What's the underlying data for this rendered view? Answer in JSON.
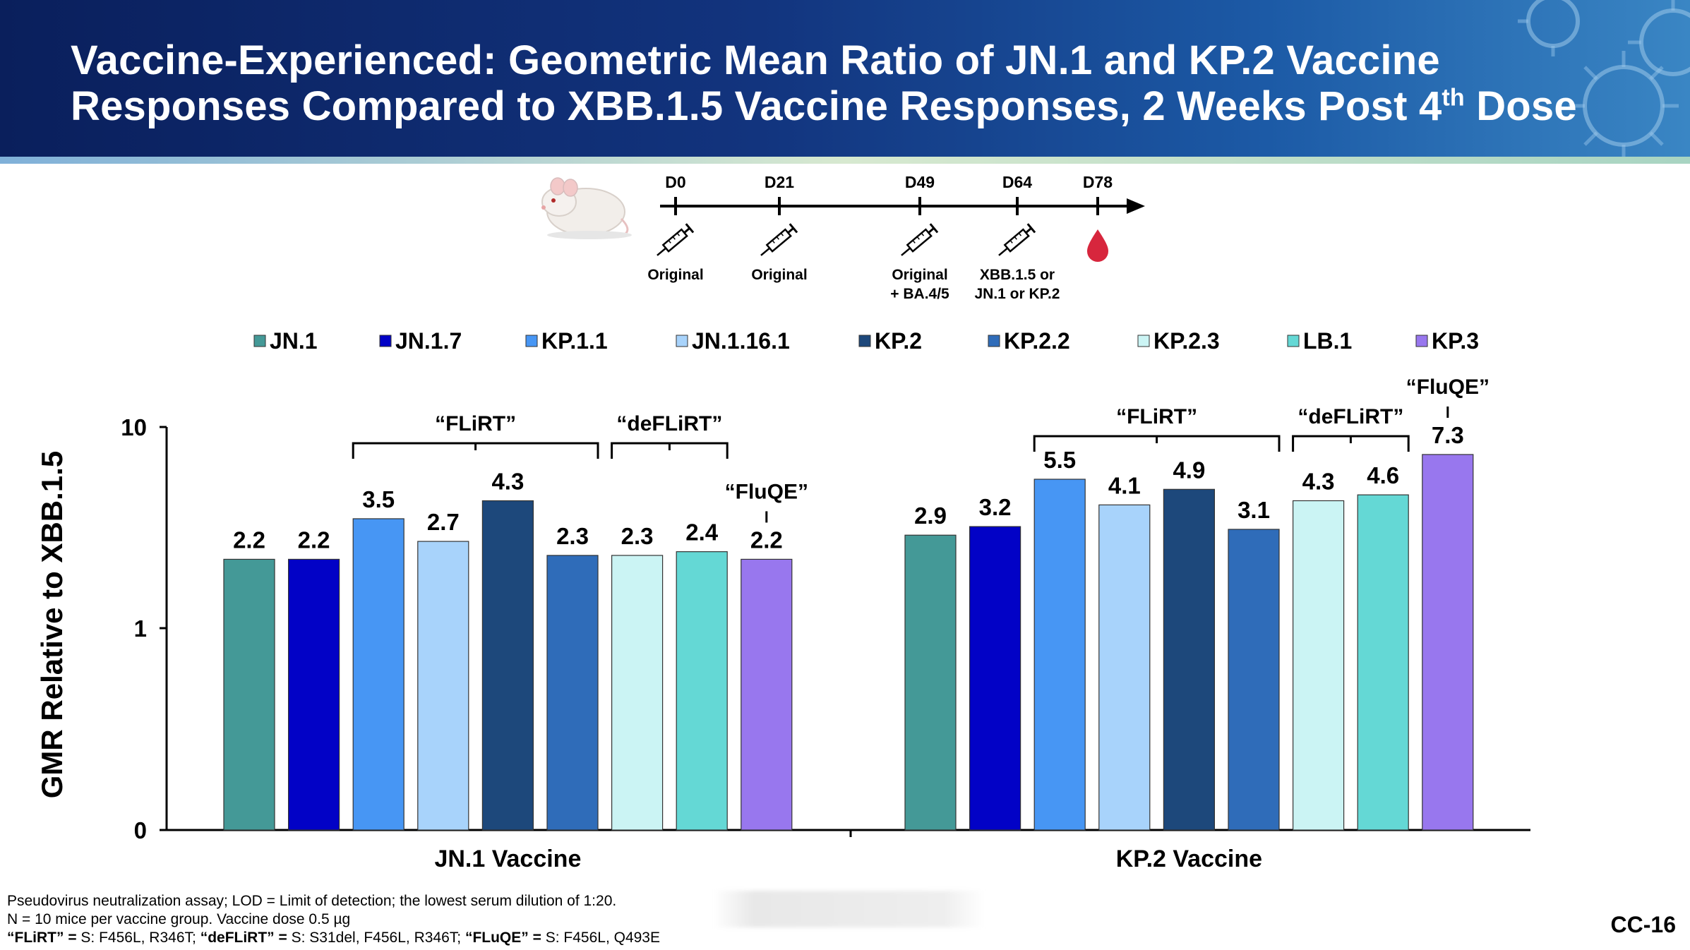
{
  "header": {
    "title_line1": "Vaccine-Experienced: Geometric Mean Ratio of JN.1 and KP.2 Vaccine",
    "title_line2_pre": "Responses Compared to XBB.1.5 Vaccine Responses, 2 Weeks Post 4",
    "title_line2_sup": "th",
    "title_line2_post": " Dose"
  },
  "timeline": {
    "days": [
      "D0",
      "D21",
      "D49",
      "D64",
      "D78"
    ],
    "doses": [
      {
        "lines": [
          "Original"
        ]
      },
      {
        "lines": [
          "Original"
        ]
      },
      {
        "lines": [
          "Original",
          "+ BA.4/5"
        ]
      },
      {
        "lines": [
          "XBB.1.5 or",
          "JN.1 or KP.2"
        ]
      }
    ],
    "icons": [
      "mouse-icon",
      "syringe-icon",
      "blood-drop-icon"
    ]
  },
  "chart_data": {
    "type": "bar",
    "yscale": "log-like",
    "ylabel": "GMR Relative to XBB.1.5",
    "yticks": [
      {
        "label": "10",
        "value": 10
      },
      {
        "label": "1",
        "value": 1
      },
      {
        "label": "0",
        "value": 0
      }
    ],
    "legend_position": "top",
    "series_names": [
      "JN.1",
      "JN.1.7",
      "KP.1.1",
      "JN.1.16.1",
      "KP.2",
      "KP.2.2",
      "KP.2.3",
      "LB.1",
      "KP.3"
    ],
    "series_colors": [
      "#449997",
      "#0202c6",
      "#4796f4",
      "#a8d3fb",
      "#1d487b",
      "#2f6cb9",
      "#cbf4f4",
      "#64d8d5",
      "#9877ee"
    ],
    "groups": [
      {
        "name": "JN.1 Vaccine",
        "bars": [
          {
            "series": "JN.1",
            "value": 2.2,
            "label": "2.2"
          },
          {
            "series": "JN.1.7",
            "value": 2.2,
            "label": "2.2"
          },
          {
            "series": "KP.1.1",
            "value": 3.5,
            "label": "3.5"
          },
          {
            "series": "JN.1.16.1",
            "value": 2.7,
            "label": "2.7"
          },
          {
            "series": "KP.2",
            "value": 4.3,
            "label": "4.3"
          },
          {
            "series": "KP.2.2",
            "value": 2.3,
            "label": "2.3"
          },
          {
            "series": "KP.2.3",
            "value": 2.3,
            "label": "2.3"
          },
          {
            "series": "LB.1",
            "value": 2.4,
            "label": "2.4"
          },
          {
            "series": "KP.3",
            "value": 2.2,
            "label": "2.2"
          }
        ]
      },
      {
        "name": "KP.2 Vaccine",
        "bars": [
          {
            "series": "JN.1",
            "value": 2.9,
            "label": "2.9"
          },
          {
            "series": "JN.1.7",
            "value": 3.2,
            "label": "3.2"
          },
          {
            "series": "KP.1.1",
            "value": 5.5,
            "label": "5.5"
          },
          {
            "series": "JN.1.16.1",
            "value": 4.1,
            "label": "4.1"
          },
          {
            "series": "KP.2",
            "value": 4.9,
            "label": "4.9"
          },
          {
            "series": "KP.2.2",
            "value": 3.1,
            "label": "3.1"
          },
          {
            "series": "KP.2.3",
            "value": 4.3,
            "label": "4.3"
          },
          {
            "series": "LB.1",
            "value": 4.6,
            "label": "4.6"
          },
          {
            "series": "KP.3",
            "value": 7.3,
            "label": "7.3"
          }
        ]
      }
    ],
    "annotations": [
      {
        "group": 0,
        "text": "“FLiRT”",
        "kind": "bracket",
        "from": 2,
        "to": 5
      },
      {
        "group": 0,
        "text": "“deFLiRT”",
        "kind": "bracket",
        "from": 6,
        "to": 7
      },
      {
        "group": 0,
        "text": "“FluQE”",
        "kind": "pointer",
        "at": 8
      },
      {
        "group": 1,
        "text": "“FLiRT”",
        "kind": "bracket",
        "from": 2,
        "to": 5
      },
      {
        "group": 1,
        "text": "“deFLiRT”",
        "kind": "bracket",
        "from": 6,
        "to": 7
      },
      {
        "group": 1,
        "text": "“FluQE”",
        "kind": "pointer",
        "at": 8
      }
    ]
  },
  "footnotes": {
    "line1": "Pseudovirus neutralization assay; LOD = Limit of detection; the lowest serum dilution of 1:20.",
    "line2": "N = 10 mice per vaccine group. Vaccine dose 0.5 µg",
    "line3_a": "“FLiRT” = ",
    "line3_b": "S: F456L, R346T; ",
    "line3_c": "“deFLiRT” = ",
    "line3_d": "S: S31del, F456L, R346T; ",
    "line3_e": "“FLuQE” = ",
    "line3_f": "S: F456L, Q493E"
  },
  "slide_number": "CC-16"
}
